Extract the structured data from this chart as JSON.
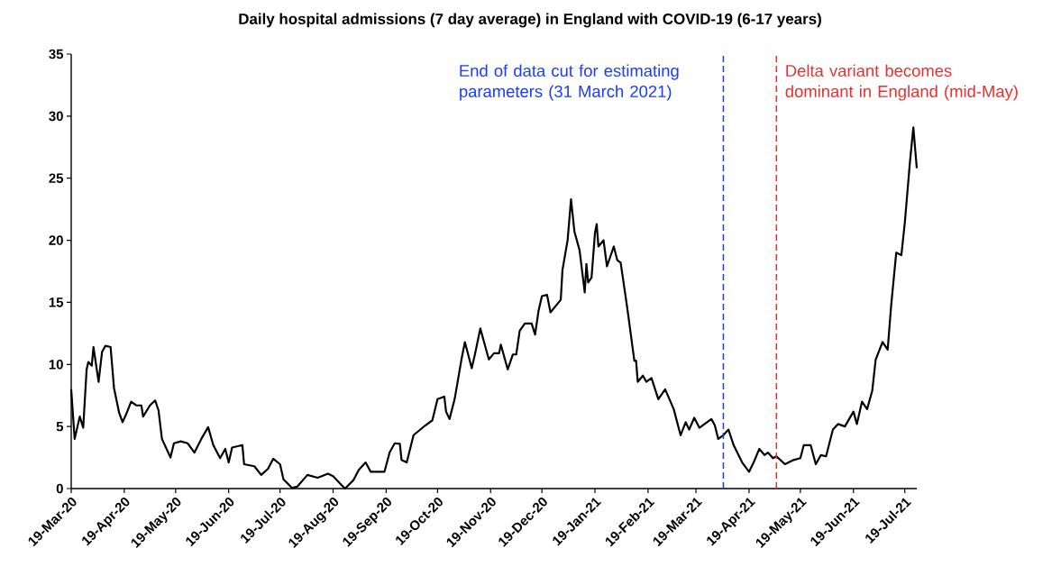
{
  "chart_data": {
    "type": "line",
    "title": "Daily hospital admissions (7 day average) in England with COVID-19 (6-17 years)",
    "x": [
      "2020-03-19",
      "2020-03-21",
      "2020-03-24",
      "2020-03-26",
      "2020-03-28",
      "2020-03-29",
      "2020-03-31",
      "2020-04-01",
      "2020-04-04",
      "2020-04-06",
      "2020-04-08",
      "2020-04-11",
      "2020-04-13",
      "2020-04-16",
      "2020-04-18",
      "2020-04-20",
      "2020-04-23",
      "2020-04-26",
      "2020-04-29",
      "2020-04-30",
      "2020-05-04",
      "2020-05-07",
      "2020-05-09",
      "2020-05-11",
      "2020-05-16",
      "2020-05-18",
      "2020-05-22",
      "2020-05-26",
      "2020-05-30",
      "2020-06-03",
      "2020-06-07",
      "2020-06-10",
      "2020-06-14",
      "2020-06-17",
      "2020-06-19",
      "2020-06-21",
      "2020-06-27",
      "2020-06-28",
      "2020-07-04",
      "2020-07-08",
      "2020-07-12",
      "2020-07-15",
      "2020-07-19",
      "2020-07-21",
      "2020-07-26",
      "2020-07-29",
      "2020-08-04",
      "2020-08-10",
      "2020-08-16",
      "2020-08-19",
      "2020-08-24",
      "2020-08-26",
      "2020-08-31",
      "2020-09-03",
      "2020-09-07",
      "2020-09-10",
      "2020-09-18",
      "2020-09-21",
      "2020-09-24",
      "2020-09-27",
      "2020-09-28",
      "2020-10-01",
      "2020-10-05",
      "2020-10-12",
      "2020-10-16",
      "2020-10-19",
      "2020-10-23",
      "2020-10-24",
      "2020-10-26",
      "2020-10-29",
      "2020-11-02",
      "2020-11-04",
      "2020-11-08",
      "2020-11-10",
      "2020-11-13",
      "2020-11-18",
      "2020-11-21",
      "2020-11-24",
      "2020-11-25",
      "2020-11-29",
      "2020-12-02",
      "2020-12-04",
      "2020-12-06",
      "2020-12-09",
      "2020-12-13",
      "2020-12-15",
      "2020-12-17",
      "2020-12-19",
      "2020-12-22",
      "2020-12-24",
      "2020-12-30",
      "2020-12-31",
      "2021-01-03",
      "2021-01-05",
      "2021-01-07",
      "2021-01-10",
      "2021-01-13",
      "2021-01-14",
      "2021-01-15",
      "2021-01-17",
      "2021-01-19",
      "2021-01-20",
      "2021-01-21",
      "2021-01-24",
      "2021-01-26",
      "2021-01-30",
      "2021-02-01",
      "2021-02-03",
      "2021-02-07",
      "2021-02-11",
      "2021-02-12",
      "2021-02-13",
      "2021-02-16",
      "2021-02-18",
      "2021-02-21",
      "2021-02-25",
      "2021-03-01",
      "2021-03-06",
      "2021-03-10",
      "2021-03-13",
      "2021-03-15",
      "2021-03-18",
      "2021-03-21",
      "2021-03-28",
      "2021-03-30",
      "2021-04-01",
      "2021-04-04",
      "2021-04-07",
      "2021-04-10",
      "2021-04-15",
      "2021-04-19",
      "2021-04-22",
      "2021-04-25",
      "2021-04-28",
      "2021-04-30",
      "2021-05-03",
      "2021-05-05",
      "2021-05-10",
      "2021-05-15",
      "2021-05-19",
      "2021-05-21",
      "2021-05-25",
      "2021-05-28",
      "2021-05-31",
      "2021-06-03",
      "2021-06-07",
      "2021-06-10",
      "2021-06-14",
      "2021-06-19",
      "2021-06-21",
      "2021-06-24",
      "2021-06-27",
      "2021-06-30",
      "2021-07-02",
      "2021-07-06",
      "2021-07-09",
      "2021-07-11",
      "2021-07-14",
      "2021-07-17",
      "2021-07-19",
      "2021-07-22",
      "2021-07-24",
      "2021-07-26"
    ],
    "values": [
      8.0,
      4.0,
      5.8,
      4.9,
      9.6,
      10.2,
      9.9,
      11.4,
      8.6,
      11.0,
      11.5,
      11.4,
      8.1,
      6.1,
      5.35,
      5.95,
      7.0,
      6.7,
      6.7,
      5.8,
      6.7,
      7.1,
      6.3,
      4.0,
      2.5,
      3.65,
      3.8,
      3.65,
      2.9,
      4.0,
      4.95,
      3.5,
      2.45,
      3.2,
      2.1,
      3.3,
      3.5,
      1.96,
      1.8,
      1.1,
      1.6,
      2.4,
      1.96,
      0.75,
      0.05,
      0.15,
      1.1,
      0.87,
      1.2,
      1.0,
      0.27,
      0.0,
      0.7,
      1.5,
      2.1,
      1.35,
      1.35,
      2.9,
      3.65,
      3.6,
      2.3,
      2.1,
      4.3,
      5.1,
      5.5,
      7.2,
      7.4,
      6.2,
      5.6,
      7.2,
      10.4,
      11.8,
      9.7,
      10.9,
      12.9,
      10.4,
      10.9,
      10.9,
      11.6,
      9.6,
      10.8,
      10.8,
      12.7,
      13.3,
      13.3,
      12.4,
      14.3,
      15.5,
      15.6,
      14.2,
      15.2,
      17.6,
      20.0,
      23.3,
      20.7,
      19.2,
      15.8,
      18.1,
      16.6,
      17.0,
      20.6,
      21.3,
      19.5,
      20.0,
      17.9,
      19.5,
      18.4,
      18.2,
      14.4,
      10.3,
      10.3,
      8.6,
      9.1,
      8.6,
      8.9,
      7.2,
      8.0,
      6.4,
      4.3,
      5.35,
      4.75,
      5.7,
      4.9,
      5.6,
      5.1,
      4.0,
      4.3,
      4.75,
      3.5,
      2.1,
      1.35,
      2.2,
      3.2,
      2.7,
      2.9,
      2.45,
      2.6,
      1.96,
      2.3,
      2.45,
      3.5,
      3.5,
      1.96,
      2.7,
      2.6,
      4.75,
      5.2,
      5.0,
      6.2,
      5.2,
      7.0,
      6.4,
      7.9,
      10.4,
      11.8,
      11.2,
      14.7,
      19.0,
      18.8,
      21.4,
      26.3,
      29.1,
      25.8
    ],
    "color": "#000000",
    "marker": "none",
    "line_style": "solid",
    "grid": false,
    "xlim": [
      "2020-03-19",
      "2021-07-26"
    ],
    "ylim": [
      0,
      35
    ],
    "yticks": [
      0,
      5,
      10,
      15,
      20,
      25,
      30,
      35
    ],
    "xticks": [
      {
        "value": "2020-03-19",
        "label": "19-Mar-20"
      },
      {
        "value": "2020-04-19",
        "label": "19-Apr-20"
      },
      {
        "value": "2020-05-19",
        "label": "19-May-20"
      },
      {
        "value": "2020-06-19",
        "label": "19-Jun-20"
      },
      {
        "value": "2020-07-19",
        "label": "19-Jul-20"
      },
      {
        "value": "2020-08-19",
        "label": "19-Aug-20"
      },
      {
        "value": "2020-09-19",
        "label": "19-Sep-20"
      },
      {
        "value": "2020-10-19",
        "label": "19-Oct-20"
      },
      {
        "value": "2020-11-19",
        "label": "19-Nov-20"
      },
      {
        "value": "2020-12-19",
        "label": "19-Dec-20"
      },
      {
        "value": "2021-01-19",
        "label": "19-Jan-21"
      },
      {
        "value": "2021-02-19",
        "label": "19-Feb-21"
      },
      {
        "value": "2021-03-19",
        "label": "19-Mar-21"
      },
      {
        "value": "2021-04-19",
        "label": "19-Apr-21"
      },
      {
        "value": "2021-05-19",
        "label": "19-May-21"
      },
      {
        "value": "2021-06-19",
        "label": "19-Jun-21"
      },
      {
        "value": "2021-07-19",
        "label": "19-Jul-21"
      }
    ],
    "ref_lines": [
      {
        "axis": "x",
        "value": "2021-04-04",
        "label": "End of data cut for estimating parameters (31 March 2021)",
        "color": "#1a3cff",
        "line_style": "dashed"
      },
      {
        "axis": "x",
        "value": "2021-05-05",
        "label": "Delta variant becomes dominant in England (mid-May)",
        "color": "#e8312f",
        "line_style": "dashed"
      }
    ]
  }
}
